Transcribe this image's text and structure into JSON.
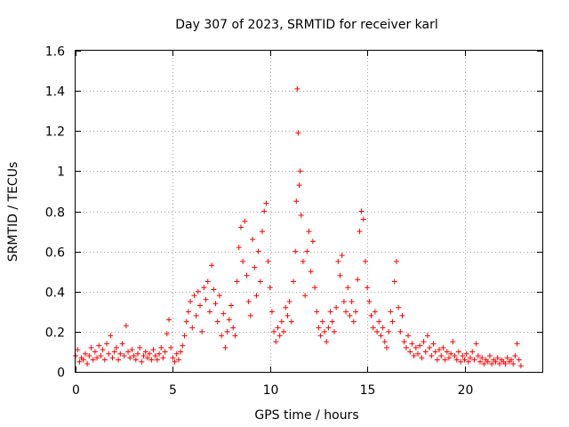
{
  "chart_data": {
    "type": "scatter",
    "title": "Day 307 of 2023, SRMTID for receiver karl",
    "xlabel": "GPS time / hours",
    "ylabel": "SRMTID / TECUs",
    "xlim": [
      0,
      24
    ],
    "ylim": [
      0,
      1.6
    ],
    "x_ticks": [
      0,
      5,
      10,
      15,
      20
    ],
    "y_ticks": [
      0,
      0.2,
      0.4,
      0.6,
      0.8,
      1,
      1.2,
      1.4,
      1.6
    ],
    "x_tick_labels": [
      "0",
      "5",
      "10",
      "15",
      "20"
    ],
    "y_tick_labels": [
      "0",
      "0.2",
      "0.4",
      "0.6",
      "0.8",
      "1",
      "1.2",
      "1.4",
      "1.6"
    ],
    "grid": true,
    "marker": "+",
    "series": [
      {
        "name": "SRMTID",
        "color": "#ff0000",
        "points": [
          [
            0.0,
            0.08
          ],
          [
            0.1,
            0.11
          ],
          [
            0.2,
            0.05
          ],
          [
            0.3,
            0.07
          ],
          [
            0.4,
            0.06
          ],
          [
            0.5,
            0.09
          ],
          [
            0.6,
            0.04
          ],
          [
            0.7,
            0.08
          ],
          [
            0.8,
            0.12
          ],
          [
            0.9,
            0.06
          ],
          [
            1.0,
            0.1
          ],
          [
            1.1,
            0.07
          ],
          [
            1.2,
            0.13
          ],
          [
            1.3,
            0.08
          ],
          [
            1.4,
            0.11
          ],
          [
            1.5,
            0.06
          ],
          [
            1.6,
            0.14
          ],
          [
            1.7,
            0.09
          ],
          [
            1.8,
            0.18
          ],
          [
            1.9,
            0.07
          ],
          [
            2.0,
            0.1
          ],
          [
            2.1,
            0.12
          ],
          [
            2.2,
            0.06
          ],
          [
            2.3,
            0.09
          ],
          [
            2.4,
            0.14
          ],
          [
            2.5,
            0.08
          ],
          [
            2.6,
            0.23
          ],
          [
            2.7,
            0.1
          ],
          [
            2.8,
            0.07
          ],
          [
            2.9,
            0.11
          ],
          [
            3.0,
            0.08
          ],
          [
            3.1,
            0.06
          ],
          [
            3.2,
            0.09
          ],
          [
            3.3,
            0.12
          ],
          [
            3.4,
            0.05
          ],
          [
            3.5,
            0.08
          ],
          [
            3.6,
            0.1
          ],
          [
            3.7,
            0.07
          ],
          [
            3.8,
            0.09
          ],
          [
            3.9,
            0.06
          ],
          [
            4.0,
            0.11
          ],
          [
            4.1,
            0.08
          ],
          [
            4.2,
            0.06
          ],
          [
            4.3,
            0.09
          ],
          [
            4.4,
            0.12
          ],
          [
            4.5,
            0.07
          ],
          [
            4.6,
            0.1
          ],
          [
            4.7,
            0.19
          ],
          [
            4.8,
            0.26
          ],
          [
            4.9,
            0.12
          ],
          [
            5.0,
            0.07
          ],
          [
            5.1,
            0.05
          ],
          [
            5.2,
            0.09
          ],
          [
            5.3,
            0.06
          ],
          [
            5.4,
            0.1
          ],
          [
            5.5,
            0.13
          ],
          [
            5.6,
            0.18
          ],
          [
            5.7,
            0.25
          ],
          [
            5.8,
            0.3
          ],
          [
            5.9,
            0.35
          ],
          [
            6.0,
            0.22
          ],
          [
            6.1,
            0.38
          ],
          [
            6.2,
            0.28
          ],
          [
            6.3,
            0.4
          ],
          [
            6.4,
            0.33
          ],
          [
            6.5,
            0.2
          ],
          [
            6.6,
            0.42
          ],
          [
            6.7,
            0.36
          ],
          [
            6.8,
            0.45
          ],
          [
            6.9,
            0.3
          ],
          [
            7.0,
            0.53
          ],
          [
            7.1,
            0.41
          ],
          [
            7.2,
            0.34
          ],
          [
            7.3,
            0.25
          ],
          [
            7.4,
            0.38
          ],
          [
            7.5,
            0.18
          ],
          [
            7.6,
            0.29
          ],
          [
            7.7,
            0.12
          ],
          [
            7.8,
            0.2
          ],
          [
            7.9,
            0.26
          ],
          [
            8.0,
            0.33
          ],
          [
            8.1,
            0.22
          ],
          [
            8.2,
            0.18
          ],
          [
            8.3,
            0.45
          ],
          [
            8.4,
            0.62
          ],
          [
            8.5,
            0.72
          ],
          [
            8.6,
            0.55
          ],
          [
            8.7,
            0.75
          ],
          [
            8.8,
            0.48
          ],
          [
            8.9,
            0.35
          ],
          [
            9.0,
            0.28
          ],
          [
            9.1,
            0.66
          ],
          [
            9.2,
            0.52
          ],
          [
            9.3,
            0.38
          ],
          [
            9.4,
            0.6
          ],
          [
            9.5,
            0.45
          ],
          [
            9.6,
            0.7
          ],
          [
            9.7,
            0.8
          ],
          [
            9.8,
            0.84
          ],
          [
            9.9,
            0.55
          ],
          [
            10.0,
            0.42
          ],
          [
            10.1,
            0.3
          ],
          [
            10.2,
            0.2
          ],
          [
            10.3,
            0.15
          ],
          [
            10.4,
            0.22
          ],
          [
            10.5,
            0.18
          ],
          [
            10.6,
            0.25
          ],
          [
            10.7,
            0.2
          ],
          [
            10.8,
            0.32
          ],
          [
            10.9,
            0.28
          ],
          [
            11.0,
            0.35
          ],
          [
            11.1,
            0.25
          ],
          [
            11.2,
            0.45
          ],
          [
            11.3,
            0.6
          ],
          [
            11.35,
            0.85
          ],
          [
            11.4,
            1.41
          ],
          [
            11.45,
            1.19
          ],
          [
            11.5,
            0.93
          ],
          [
            11.55,
            1.0
          ],
          [
            11.6,
            0.78
          ],
          [
            11.7,
            0.55
          ],
          [
            11.8,
            0.38
          ],
          [
            11.9,
            0.6
          ],
          [
            12.0,
            0.7
          ],
          [
            12.1,
            0.5
          ],
          [
            12.2,
            0.65
          ],
          [
            12.3,
            0.42
          ],
          [
            12.4,
            0.3
          ],
          [
            12.5,
            0.22
          ],
          [
            12.6,
            0.18
          ],
          [
            12.7,
            0.25
          ],
          [
            12.8,
            0.2
          ],
          [
            12.9,
            0.15
          ],
          [
            13.0,
            0.22
          ],
          [
            13.1,
            0.3
          ],
          [
            13.2,
            0.25
          ],
          [
            13.3,
            0.2
          ],
          [
            13.4,
            0.32
          ],
          [
            13.5,
            0.55
          ],
          [
            13.6,
            0.48
          ],
          [
            13.7,
            0.58
          ],
          [
            13.8,
            0.35
          ],
          [
            13.9,
            0.3
          ],
          [
            14.0,
            0.42
          ],
          [
            14.1,
            0.28
          ],
          [
            14.2,
            0.35
          ],
          [
            14.3,
            0.25
          ],
          [
            14.4,
            0.3
          ],
          [
            14.5,
            0.46
          ],
          [
            14.6,
            0.7
          ],
          [
            14.7,
            0.8
          ],
          [
            14.8,
            0.76
          ],
          [
            14.9,
            0.55
          ],
          [
            15.0,
            0.42
          ],
          [
            15.1,
            0.35
          ],
          [
            15.2,
            0.28
          ],
          [
            15.3,
            0.22
          ],
          [
            15.4,
            0.3
          ],
          [
            15.5,
            0.2
          ],
          [
            15.6,
            0.25
          ],
          [
            15.7,
            0.18
          ],
          [
            15.8,
            0.22
          ],
          [
            15.9,
            0.15
          ],
          [
            16.0,
            0.12
          ],
          [
            16.1,
            0.2
          ],
          [
            16.2,
            0.3
          ],
          [
            16.3,
            0.25
          ],
          [
            16.4,
            0.45
          ],
          [
            16.5,
            0.55
          ],
          [
            16.6,
            0.32
          ],
          [
            16.7,
            0.2
          ],
          [
            16.8,
            0.28
          ],
          [
            16.9,
            0.15
          ],
          [
            17.0,
            0.12
          ],
          [
            17.1,
            0.18
          ],
          [
            17.2,
            0.1
          ],
          [
            17.3,
            0.14
          ],
          [
            17.4,
            0.08
          ],
          [
            17.5,
            0.12
          ],
          [
            17.6,
            0.09
          ],
          [
            17.7,
            0.13
          ],
          [
            17.8,
            0.07
          ],
          [
            17.9,
            0.15
          ],
          [
            18.0,
            0.1
          ],
          [
            18.1,
            0.18
          ],
          [
            18.2,
            0.12
          ],
          [
            18.3,
            0.08
          ],
          [
            18.4,
            0.14
          ],
          [
            18.5,
            0.1
          ],
          [
            18.6,
            0.06
          ],
          [
            18.7,
            0.11
          ],
          [
            18.8,
            0.08
          ],
          [
            18.9,
            0.12
          ],
          [
            19.0,
            0.06
          ],
          [
            19.1,
            0.1
          ],
          [
            19.2,
            0.07
          ],
          [
            19.3,
            0.09
          ],
          [
            19.4,
            0.15
          ],
          [
            19.5,
            0.08
          ],
          [
            19.6,
            0.06
          ],
          [
            19.7,
            0.1
          ],
          [
            19.8,
            0.05
          ],
          [
            19.9,
            0.08
          ],
          [
            20.0,
            0.06
          ],
          [
            20.1,
            0.09
          ],
          [
            20.2,
            0.05
          ],
          [
            20.3,
            0.07
          ],
          [
            20.4,
            0.1
          ],
          [
            20.5,
            0.06
          ],
          [
            20.6,
            0.14
          ],
          [
            20.7,
            0.08
          ],
          [
            20.8,
            0.05
          ],
          [
            20.9,
            0.07
          ],
          [
            21.0,
            0.04
          ],
          [
            21.1,
            0.06
          ],
          [
            21.2,
            0.05
          ],
          [
            21.3,
            0.08
          ],
          [
            21.4,
            0.04
          ],
          [
            21.5,
            0.06
          ],
          [
            21.6,
            0.05
          ],
          [
            21.7,
            0.07
          ],
          [
            21.8,
            0.04
          ],
          [
            21.9,
            0.06
          ],
          [
            22.0,
            0.05
          ],
          [
            22.1,
            0.04
          ],
          [
            22.2,
            0.07
          ],
          [
            22.3,
            0.05
          ],
          [
            22.4,
            0.06
          ],
          [
            22.5,
            0.04
          ],
          [
            22.6,
            0.08
          ],
          [
            22.7,
            0.14
          ],
          [
            22.8,
            0.06
          ],
          [
            22.9,
            0.03
          ]
        ]
      }
    ]
  }
}
